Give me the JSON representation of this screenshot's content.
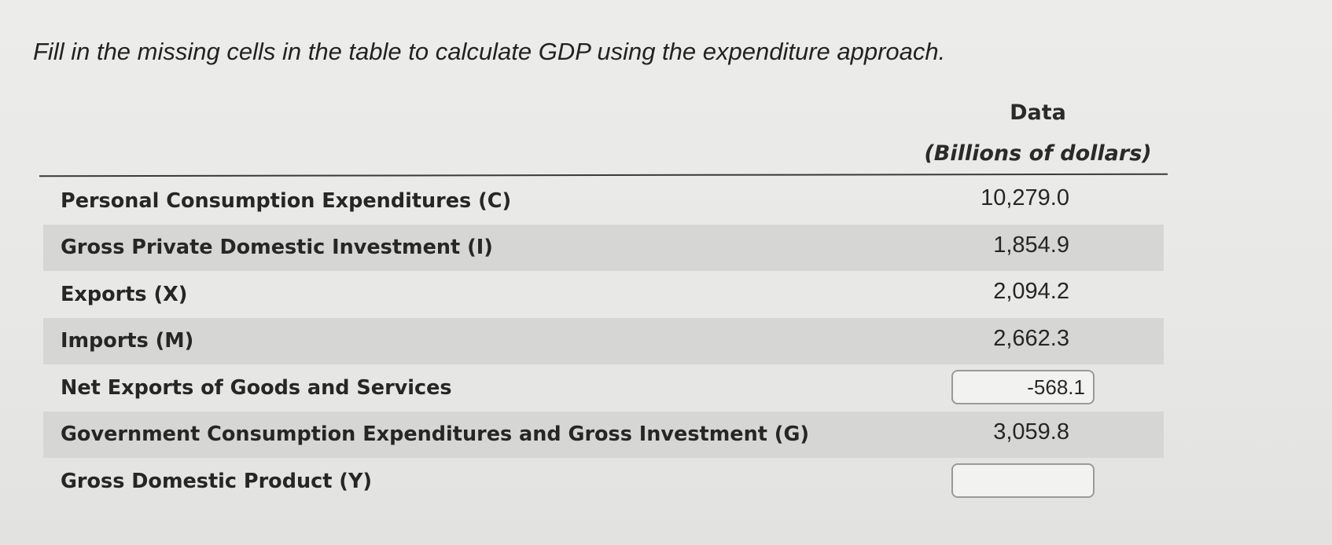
{
  "instruction": "Fill in the missing cells in the table to calculate GDP using the expenditure approach.",
  "table": {
    "header_line1": "Data",
    "header_line2": "(Billions of dollars)",
    "rows": [
      {
        "label": "Personal Consumption Expenditures (C)",
        "value": "10,279.0"
      },
      {
        "label": "Gross Private Domestic Investment (I)",
        "value": "1,854.9"
      },
      {
        "label": "Exports (X)",
        "value": "2,094.2"
      },
      {
        "label": "Imports (M)",
        "value": "2,662.3"
      },
      {
        "label": "Net Exports of Goods and Services",
        "input_value": "-568.1"
      },
      {
        "label": "Government Consumption Expenditures and Gross Investment (G)",
        "value": "3,059.8"
      },
      {
        "label": "Gross Domestic Product (Y)",
        "input_value": ""
      }
    ]
  }
}
